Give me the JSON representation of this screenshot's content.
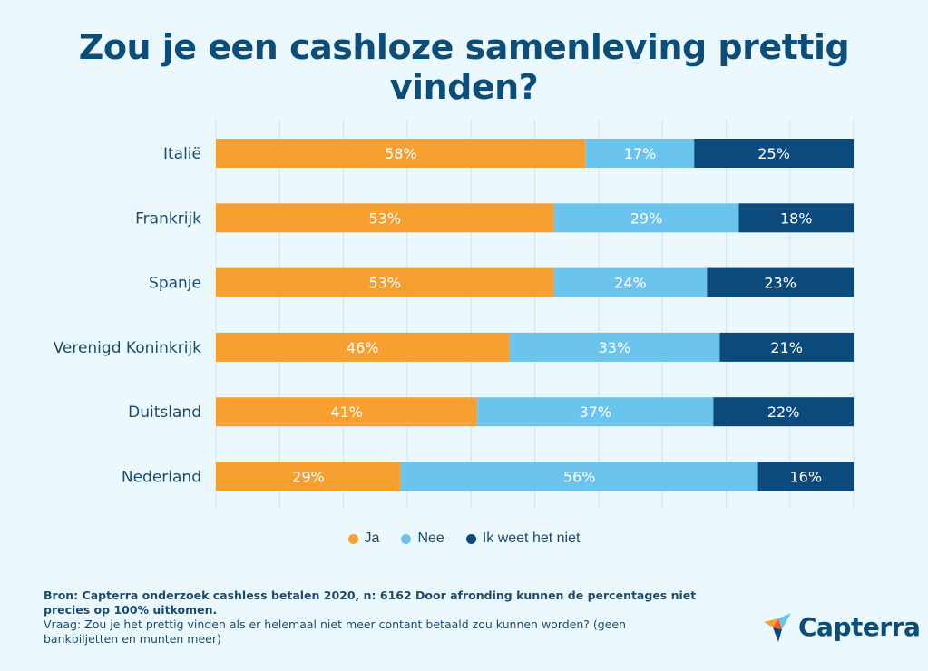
{
  "title": "Zou je een cashloze samenleving prettig vinden?",
  "colors": {
    "ja": "#f7a030",
    "nee": "#6ac4ee",
    "weet_niet": "#0b4a7b",
    "grid": "#cfe4ef",
    "label": "#1e4a6b"
  },
  "chart_data": {
    "type": "bar",
    "orientation": "horizontal",
    "stacked": true,
    "categories": [
      "Italië",
      "Frankrijk",
      "Spanje",
      "Verenigd Koninkrijk",
      "Duitsland",
      "Nederland"
    ],
    "series": [
      {
        "name": "Ja",
        "values": [
          58,
          53,
          53,
          46,
          41,
          29
        ]
      },
      {
        "name": "Nee",
        "values": [
          17,
          29,
          24,
          33,
          37,
          56
        ]
      },
      {
        "name": "Ik weet het niet",
        "values": [
          25,
          18,
          23,
          21,
          22,
          16
        ]
      }
    ],
    "value_suffix": "%",
    "grid": true,
    "legend_position": "bottom"
  },
  "legend": [
    {
      "label": "Ja"
    },
    {
      "label": "Nee"
    },
    {
      "label": "Ik weet het niet"
    }
  ],
  "footer": {
    "source": "Bron: Capterra onderzoek cashless betalen 2020, n: 6162 Door afronding kunnen de percentages niet precies op 100% uitkomen.",
    "question": "Vraag: Zou je het prettig vinden als er helemaal niet meer contant betaald zou kunnen worden? (geen bankbiljetten en munten meer)"
  },
  "logo": {
    "text": "Capterra",
    "icon": "capterra-flag-icon"
  }
}
